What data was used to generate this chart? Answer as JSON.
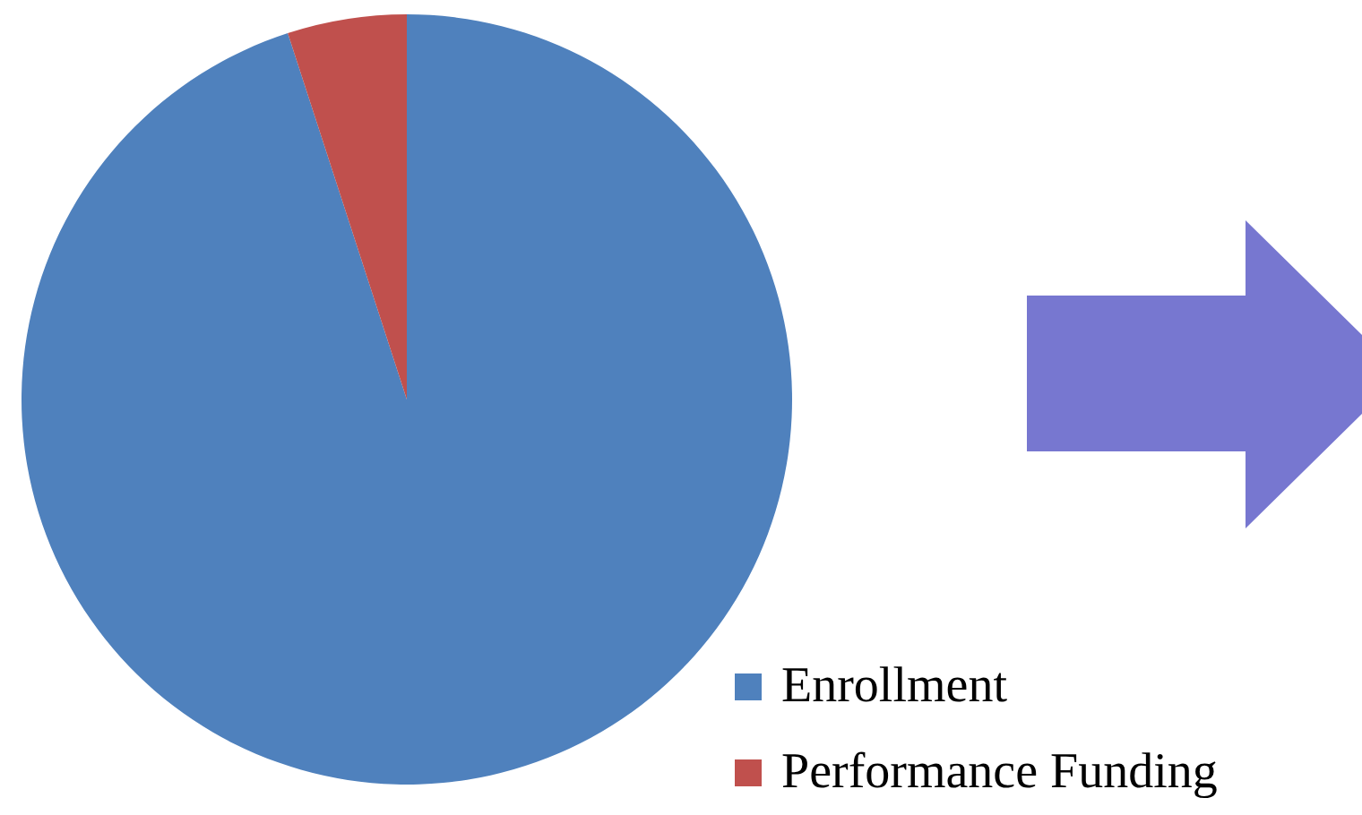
{
  "chart_data": {
    "type": "pie",
    "categories": [
      "Enrollment",
      "Performance Funding"
    ],
    "values": [
      95,
      5
    ],
    "colors": [
      "#4f81bd",
      "#c0504d"
    ],
    "legend": "bottom right"
  }
}
